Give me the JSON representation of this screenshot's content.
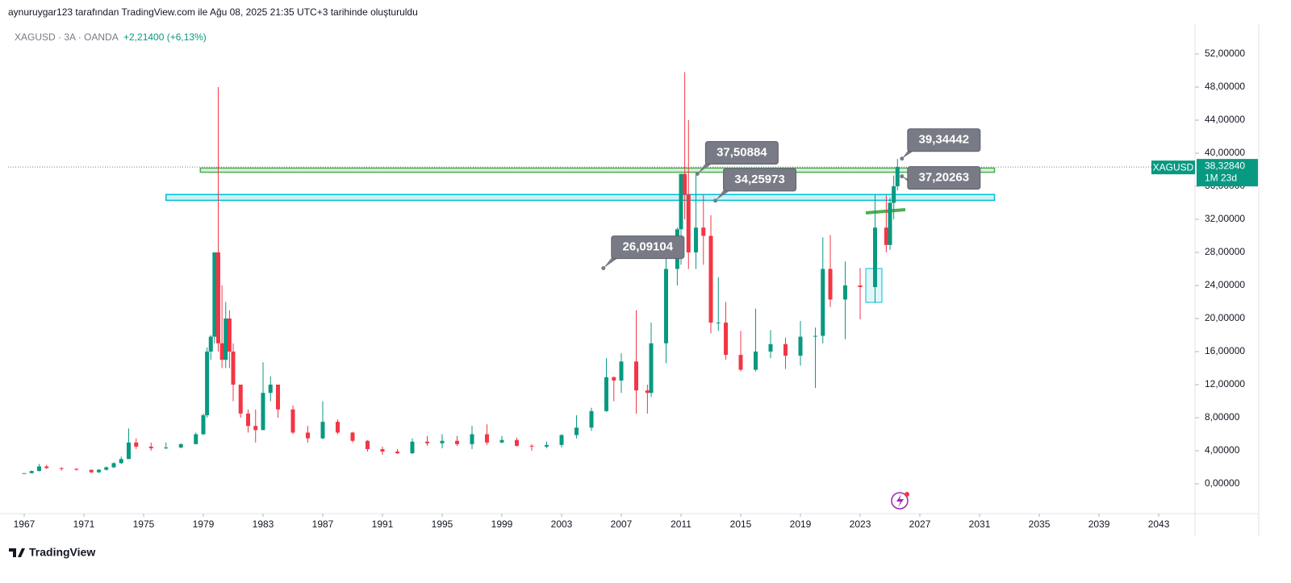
{
  "chart_data": {
    "type": "candlestick",
    "caption": "aynuruygar123 tarafından TradingView.com ile Ağu 08, 2025 21:35 UTC+3 tarihinde oluşturuldu",
    "symbol_line": "XAGUSD · 3A · OANDA",
    "change": "+2,21400 (+6,13%)",
    "brand": "TradingView",
    "up_color": "#089981",
    "down_color": "#f23645",
    "xlim": [
      1965.92,
      2045.43
    ],
    "xticks": [
      1967,
      1971,
      1975,
      1979,
      1983,
      1987,
      1991,
      1995,
      1999,
      2003,
      2007,
      2011,
      2015,
      2019,
      2023,
      2027,
      2031,
      2035,
      2039,
      2043
    ],
    "ylim": [
      -3.61,
      55.61
    ],
    "yticks": [
      {
        "value": 0,
        "label": "0,00000"
      },
      {
        "value": 4,
        "label": "4,00000"
      },
      {
        "value": 8,
        "label": "8,00000"
      },
      {
        "value": 12,
        "label": "12,00000"
      },
      {
        "value": 16,
        "label": "16,00000"
      },
      {
        "value": 20,
        "label": "20,00000"
      },
      {
        "value": 24,
        "label": "24,00000"
      },
      {
        "value": 28,
        "label": "28,00000"
      },
      {
        "value": 32,
        "label": "32,00000"
      },
      {
        "value": 36,
        "label": "36,00000"
      },
      {
        "value": 40,
        "label": "40,00000"
      },
      {
        "value": 44,
        "label": "44,00000"
      },
      {
        "value": 48,
        "label": "48,00000"
      },
      {
        "value": 52,
        "label": "52,00000"
      }
    ],
    "last_price": {
      "symbol": "XAGUSD",
      "value": 38.3284,
      "label": "38,32840",
      "countdown": "1M 23d"
    },
    "zones": [
      {
        "from": 1978.8,
        "to": 2032,
        "low": 37.7,
        "high": 38.2,
        "color": "#4caf50"
      },
      {
        "from": 1976.5,
        "to": 2032,
        "low": 34.3,
        "high": 35.0,
        "color": "#00bcd4"
      }
    ],
    "annotations": [
      {
        "x": 2012.1,
        "value": 37.50884,
        "label": "37,50884"
      },
      {
        "x": 2013.3,
        "value": 34.25973,
        "label": "34,25973"
      },
      {
        "x": 2005.8,
        "value": 26.09104,
        "label": "26,09104"
      },
      {
        "x": 2025.8,
        "value": 39.34442,
        "label": "39,34442"
      },
      {
        "x": 2025.8,
        "value": 37.20263,
        "label": "37,20263"
      }
    ],
    "candles": [
      {
        "x": 1967.0,
        "open": 1.29,
        "high": 1.3,
        "low": 1.29,
        "close": 1.29
      },
      {
        "x": 1967.5,
        "open": 1.29,
        "high": 1.6,
        "low": 1.28,
        "close": 1.55
      },
      {
        "x": 1968.0,
        "open": 1.55,
        "high": 2.4,
        "low": 1.5,
        "close": 2.1
      },
      {
        "x": 1968.5,
        "open": 2.1,
        "high": 2.3,
        "low": 1.8,
        "close": 1.9
      },
      {
        "x": 1969.5,
        "open": 1.9,
        "high": 2.0,
        "low": 1.6,
        "close": 1.8
      },
      {
        "x": 1970.5,
        "open": 1.8,
        "high": 1.9,
        "low": 1.6,
        "close": 1.7
      },
      {
        "x": 1971.5,
        "open": 1.7,
        "high": 1.7,
        "low": 1.3,
        "close": 1.4
      },
      {
        "x": 1972.0,
        "open": 1.4,
        "high": 1.8,
        "low": 1.3,
        "close": 1.7
      },
      {
        "x": 1972.5,
        "open": 1.7,
        "high": 2.1,
        "low": 1.6,
        "close": 2.0
      },
      {
        "x": 1973.0,
        "open": 2.0,
        "high": 2.6,
        "low": 1.9,
        "close": 2.5
      },
      {
        "x": 1973.5,
        "open": 2.5,
        "high": 3.3,
        "low": 2.4,
        "close": 3.0
      },
      {
        "x": 1974.0,
        "open": 3.0,
        "high": 6.7,
        "low": 3.0,
        "close": 5.0
      },
      {
        "x": 1974.5,
        "open": 5.0,
        "high": 5.5,
        "low": 4.2,
        "close": 4.5
      },
      {
        "x": 1975.5,
        "open": 4.5,
        "high": 5.0,
        "low": 4.0,
        "close": 4.3
      },
      {
        "x": 1976.5,
        "open": 4.3,
        "high": 5.0,
        "low": 4.2,
        "close": 4.4
      },
      {
        "x": 1977.5,
        "open": 4.4,
        "high": 4.9,
        "low": 4.3,
        "close": 4.8
      },
      {
        "x": 1978.5,
        "open": 4.8,
        "high": 6.2,
        "low": 4.8,
        "close": 6.0
      },
      {
        "x": 1979.0,
        "open": 6.0,
        "high": 8.5,
        "low": 5.9,
        "close": 8.3
      },
      {
        "x": 1979.25,
        "open": 8.3,
        "high": 16.5,
        "low": 8.0,
        "close": 16.0
      },
      {
        "x": 1979.5,
        "open": 16.0,
        "high": 18.0,
        "low": 15.0,
        "close": 17.8
      },
      {
        "x": 1979.75,
        "open": 17.8,
        "high": 28.0,
        "low": 17.0,
        "close": 28.0
      },
      {
        "x": 1980.0,
        "open": 28.0,
        "high": 48.0,
        "low": 16.0,
        "close": 17.0
      },
      {
        "x": 1980.25,
        "open": 17.0,
        "high": 24.0,
        "low": 14.0,
        "close": 15.0
      },
      {
        "x": 1980.5,
        "open": 15.0,
        "high": 22.0,
        "low": 14.0,
        "close": 20.0
      },
      {
        "x": 1980.75,
        "open": 20.0,
        "high": 21.0,
        "low": 14.0,
        "close": 16.0
      },
      {
        "x": 1981.0,
        "open": 16.0,
        "high": 17.0,
        "low": 10.0,
        "close": 12.0
      },
      {
        "x": 1981.5,
        "open": 12.0,
        "high": 12.0,
        "low": 8.0,
        "close": 8.5
      },
      {
        "x": 1982.0,
        "open": 8.5,
        "high": 9.0,
        "low": 6.2,
        "close": 7.0
      },
      {
        "x": 1982.5,
        "open": 7.0,
        "high": 9.0,
        "low": 5.0,
        "close": 6.5
      },
      {
        "x": 1983.0,
        "open": 6.5,
        "high": 14.7,
        "low": 6.5,
        "close": 11.0
      },
      {
        "x": 1983.5,
        "open": 11.0,
        "high": 13.0,
        "low": 10.0,
        "close": 12.0
      },
      {
        "x": 1984.0,
        "open": 12.0,
        "high": 12.0,
        "low": 8.0,
        "close": 9.0
      },
      {
        "x": 1985.0,
        "open": 9.0,
        "high": 9.5,
        "low": 6.0,
        "close": 6.2
      },
      {
        "x": 1986.0,
        "open": 6.2,
        "high": 7.0,
        "low": 5.0,
        "close": 5.5
      },
      {
        "x": 1987.0,
        "open": 5.5,
        "high": 10.0,
        "low": 5.4,
        "close": 7.5
      },
      {
        "x": 1988.0,
        "open": 7.5,
        "high": 7.8,
        "low": 6.0,
        "close": 6.2
      },
      {
        "x": 1989.0,
        "open": 6.2,
        "high": 6.3,
        "low": 5.0,
        "close": 5.2
      },
      {
        "x": 1990.0,
        "open": 5.2,
        "high": 5.3,
        "low": 3.9,
        "close": 4.2
      },
      {
        "x": 1991.0,
        "open": 4.2,
        "high": 4.5,
        "low": 3.5,
        "close": 3.9
      },
      {
        "x": 1992.0,
        "open": 3.9,
        "high": 4.2,
        "low": 3.6,
        "close": 3.7
      },
      {
        "x": 1993.0,
        "open": 3.7,
        "high": 5.5,
        "low": 3.6,
        "close": 5.1
      },
      {
        "x": 1994.0,
        "open": 5.1,
        "high": 5.8,
        "low": 4.6,
        "close": 4.9
      },
      {
        "x": 1995.0,
        "open": 4.9,
        "high": 6.0,
        "low": 4.3,
        "close": 5.2
      },
      {
        "x": 1996.0,
        "open": 5.2,
        "high": 5.8,
        "low": 4.6,
        "close": 4.8
      },
      {
        "x": 1997.0,
        "open": 4.8,
        "high": 7.0,
        "low": 4.2,
        "close": 6.0
      },
      {
        "x": 1998.0,
        "open": 6.0,
        "high": 7.2,
        "low": 4.7,
        "close": 5.0
      },
      {
        "x": 1999.0,
        "open": 5.0,
        "high": 5.8,
        "low": 4.9,
        "close": 5.3
      },
      {
        "x": 2000.0,
        "open": 5.3,
        "high": 5.6,
        "low": 4.5,
        "close": 4.6
      },
      {
        "x": 2001.0,
        "open": 4.6,
        "high": 4.8,
        "low": 4.0,
        "close": 4.5
      },
      {
        "x": 2002.0,
        "open": 4.5,
        "high": 5.1,
        "low": 4.3,
        "close": 4.7
      },
      {
        "x": 2003.0,
        "open": 4.7,
        "high": 6.0,
        "low": 4.4,
        "close": 5.9
      },
      {
        "x": 2004.0,
        "open": 5.9,
        "high": 8.3,
        "low": 5.5,
        "close": 6.8
      },
      {
        "x": 2005.0,
        "open": 6.8,
        "high": 9.2,
        "low": 6.4,
        "close": 8.8
      },
      {
        "x": 2006.0,
        "open": 8.8,
        "high": 15.2,
        "low": 8.7,
        "close": 12.9
      },
      {
        "x": 2006.5,
        "open": 12.9,
        "high": 13.0,
        "low": 10.0,
        "close": 12.5
      },
      {
        "x": 2007.0,
        "open": 12.5,
        "high": 15.8,
        "low": 11.0,
        "close": 14.8
      },
      {
        "x": 2008.0,
        "open": 14.8,
        "high": 21.0,
        "low": 8.5,
        "close": 11.3
      },
      {
        "x": 2008.75,
        "open": 11.3,
        "high": 12.0,
        "low": 8.5,
        "close": 11.0
      },
      {
        "x": 2009.0,
        "open": 11.0,
        "high": 19.5,
        "low": 10.5,
        "close": 17.0
      },
      {
        "x": 2010.0,
        "open": 17.0,
        "high": 28.0,
        "low": 14.6,
        "close": 26.0
      },
      {
        "x": 2010.75,
        "open": 26.0,
        "high": 31.0,
        "low": 24.0,
        "close": 30.8
      },
      {
        "x": 2011.0,
        "open": 30.8,
        "high": 37.5,
        "low": 26.5,
        "close": 37.5
      },
      {
        "x": 2011.25,
        "open": 37.5,
        "high": 49.8,
        "low": 32.0,
        "close": 35.0
      },
      {
        "x": 2011.5,
        "open": 35.0,
        "high": 44.0,
        "low": 26.0,
        "close": 28.0
      },
      {
        "x": 2012.0,
        "open": 28.0,
        "high": 37.5,
        "low": 26.0,
        "close": 31.0
      },
      {
        "x": 2012.5,
        "open": 31.0,
        "high": 35.0,
        "low": 26.5,
        "close": 30.0
      },
      {
        "x": 2013.0,
        "open": 30.0,
        "high": 32.5,
        "low": 18.2,
        "close": 19.5
      },
      {
        "x": 2013.5,
        "open": 19.5,
        "high": 25.0,
        "low": 18.5,
        "close": 19.5
      },
      {
        "x": 2014.0,
        "open": 19.5,
        "high": 22.0,
        "low": 15.0,
        "close": 15.6
      },
      {
        "x": 2015.0,
        "open": 15.6,
        "high": 18.5,
        "low": 13.6,
        "close": 13.8
      },
      {
        "x": 2016.0,
        "open": 13.8,
        "high": 21.2,
        "low": 13.6,
        "close": 16.0
      },
      {
        "x": 2017.0,
        "open": 16.0,
        "high": 18.6,
        "low": 15.2,
        "close": 16.9
      },
      {
        "x": 2018.0,
        "open": 16.9,
        "high": 17.7,
        "low": 13.9,
        "close": 15.5
      },
      {
        "x": 2019.0,
        "open": 15.5,
        "high": 19.7,
        "low": 14.3,
        "close": 17.8
      },
      {
        "x": 2020.0,
        "open": 17.8,
        "high": 18.9,
        "low": 11.6,
        "close": 17.9
      },
      {
        "x": 2020.5,
        "open": 17.9,
        "high": 29.8,
        "low": 17.0,
        "close": 26.0
      },
      {
        "x": 2021.0,
        "open": 26.0,
        "high": 30.1,
        "low": 21.4,
        "close": 22.3
      },
      {
        "x": 2022.0,
        "open": 22.3,
        "high": 26.9,
        "low": 17.5,
        "close": 24.0
      },
      {
        "x": 2023.0,
        "open": 24.0,
        "high": 26.1,
        "low": 19.9,
        "close": 23.8
      },
      {
        "x": 2024.0,
        "open": 23.8,
        "high": 35.0,
        "low": 21.9,
        "close": 31.0
      },
      {
        "x": 2024.75,
        "open": 31.0,
        "high": 34.9,
        "low": 28.0,
        "close": 28.9
      },
      {
        "x": 2025.0,
        "open": 28.9,
        "high": 34.6,
        "low": 28.3,
        "close": 34.0
      },
      {
        "x": 2025.25,
        "open": 34.0,
        "high": 37.3,
        "low": 32.0,
        "close": 36.0
      },
      {
        "x": 2025.5,
        "open": 36.0,
        "high": 39.3,
        "low": 35.5,
        "close": 38.33
      }
    ]
  }
}
